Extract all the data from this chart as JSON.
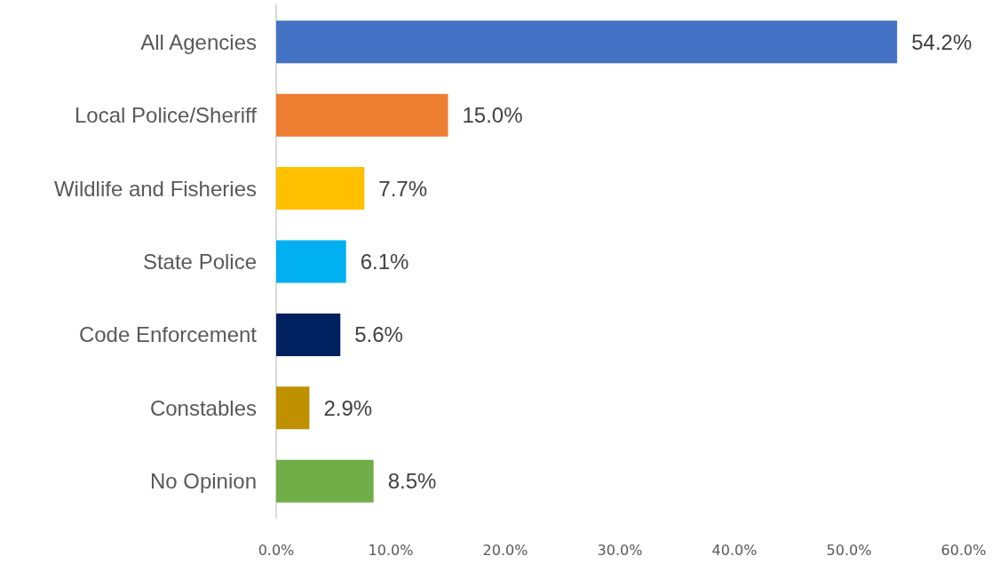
{
  "chart_data": {
    "type": "bar",
    "orientation": "horizontal",
    "categories": [
      "All Agencies",
      "Local Police/Sheriff",
      "Wildlife and Fisheries",
      "State Police",
      "Code Enforcement",
      "Constables",
      "No Opinion"
    ],
    "values": [
      54.2,
      15.0,
      7.7,
      6.1,
      5.6,
      2.9,
      8.5
    ],
    "colors": [
      "#4472c4",
      "#ed7d31",
      "#ffc000",
      "#00b0f0",
      "#002060",
      "#bf9000",
      "#70ad47"
    ],
    "value_labels": [
      "54.2%",
      "15.0%",
      "7.7%",
      "6.1%",
      "5.6%",
      "2.9%",
      "8.5%"
    ],
    "xlim": [
      0,
      60
    ],
    "xticks": [
      {
        "value": 0,
        "label": "0.0%"
      },
      {
        "value": 10,
        "label": "10.0%"
      },
      {
        "value": 20,
        "label": "20.0%"
      },
      {
        "value": 30,
        "label": "30.0%"
      },
      {
        "value": 40,
        "label": "40.0%"
      },
      {
        "value": 50,
        "label": "50.0%"
      },
      {
        "value": 60,
        "label": "60.0%"
      }
    ],
    "grid": false
  }
}
